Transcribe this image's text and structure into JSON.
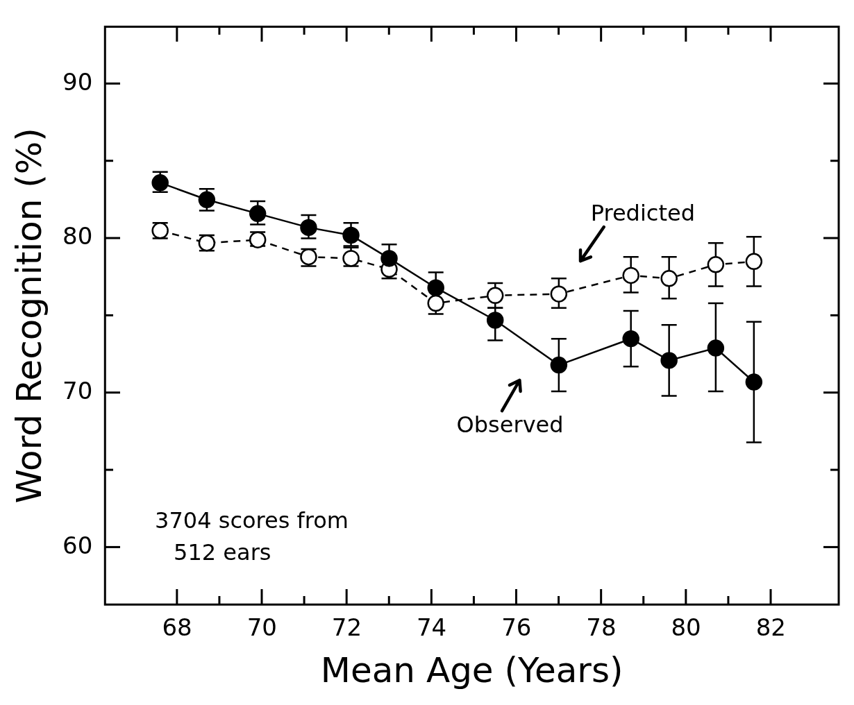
{
  "chart_data": {
    "type": "line",
    "xlabel": "Mean Age (Years)",
    "ylabel": "Word Recognition (%)",
    "x": [
      67.6,
      68.7,
      69.9,
      71.1,
      72.1,
      73.0,
      74.1,
      75.5,
      77.0,
      78.7,
      79.6,
      80.7,
      81.6
    ],
    "xlim": [
      66.3,
      83.6
    ],
    "xticks": [
      68,
      {
        "value": 69,
        "label": null
      },
      70,
      {
        "value": 71,
        "label": null
      },
      72,
      {
        "value": 73,
        "label": null
      },
      74,
      {
        "value": 75,
        "label": null
      },
      76,
      {
        "value": 77,
        "label": null
      },
      78,
      {
        "value": 79,
        "label": null
      },
      80,
      {
        "value": 81,
        "label": null
      },
      82
    ],
    "ylim": [
      56.3,
      93.7
    ],
    "yticks": [
      60,
      {
        "value": 65,
        "label": null
      },
      70,
      {
        "value": 75,
        "label": null
      },
      80,
      {
        "value": 85,
        "label": null
      },
      90
    ],
    "series": [
      {
        "name": "Observed",
        "color": "#000000",
        "marker": "circle",
        "line_style": "solid",
        "values": [
          83.6,
          82.5,
          81.6,
          80.7,
          80.2,
          78.7,
          76.8,
          74.7,
          71.8,
          73.5,
          72.1,
          72.9,
          70.7
        ],
        "errors": [
          [
            83.0,
            84.3
          ],
          [
            81.8,
            83.2
          ],
          [
            80.9,
            82.4
          ],
          [
            80.0,
            81.5
          ],
          [
            79.5,
            81.0
          ],
          [
            78.7,
            79.6
          ],
          [
            76.8,
            77.8
          ],
          [
            73.4,
            75.5
          ],
          [
            70.1,
            73.5
          ],
          [
            71.7,
            75.3
          ],
          [
            69.8,
            74.4
          ],
          [
            70.1,
            75.8
          ],
          [
            66.8,
            74.6
          ]
        ]
      },
      {
        "name": "Predicted",
        "color": "#000000",
        "marker": "circle-open",
        "line_style": "dashed",
        "values": [
          80.5,
          79.7,
          79.9,
          78.8,
          78.7,
          78.0,
          75.8,
          76.3,
          76.4,
          77.6,
          77.4,
          78.3,
          78.5
        ],
        "errors": [
          [
            80.0,
            81.0
          ],
          [
            79.2,
            80.2
          ],
          [
            79.5,
            80.4
          ],
          [
            78.2,
            79.3
          ],
          [
            78.2,
            79.4
          ],
          [
            77.4,
            78.0
          ],
          [
            75.1,
            75.8
          ],
          [
            75.5,
            77.1
          ],
          [
            75.5,
            77.4
          ],
          [
            76.5,
            78.8
          ],
          [
            76.1,
            78.8
          ],
          [
            76.9,
            79.7
          ],
          [
            76.9,
            80.1
          ]
        ]
      }
    ],
    "annotations": [
      "3704 scores from\n512 ears"
    ],
    "grid": false
  }
}
